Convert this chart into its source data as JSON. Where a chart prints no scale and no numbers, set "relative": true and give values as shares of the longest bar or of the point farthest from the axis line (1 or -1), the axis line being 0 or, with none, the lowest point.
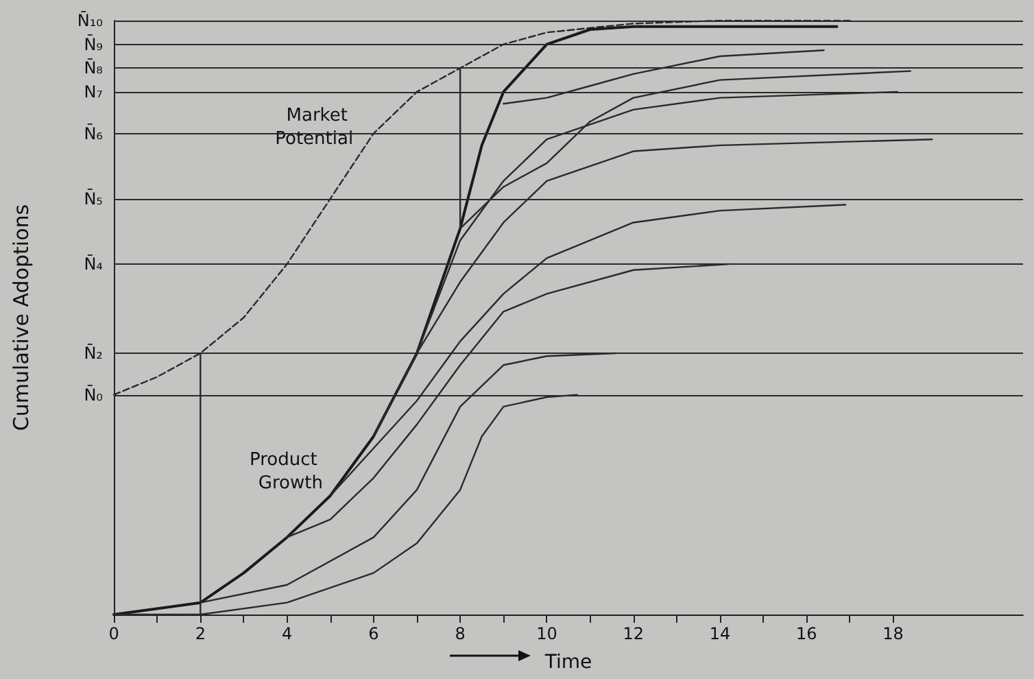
{
  "chart_data": {
    "type": "line",
    "relative": true,
    "xlabel": "Time",
    "ylabel": "Cumulative Adoptions",
    "marker": "none",
    "line_style": "solid",
    "xlim": [
      0,
      21
    ],
    "xticks": [
      0,
      {
        "value": 1,
        "label": null
      },
      2,
      {
        "value": 3,
        "label": null
      },
      4,
      {
        "value": 5,
        "label": null
      },
      6,
      {
        "value": 7,
        "label": null
      },
      8,
      {
        "value": 9,
        "label": null
      },
      10,
      {
        "value": 11,
        "label": null
      },
      12,
      {
        "value": 13,
        "label": null
      },
      14,
      {
        "value": 15,
        "label": null
      },
      16,
      {
        "value": 17,
        "label": null
      },
      18
    ],
    "series": [
      {
        "color": "#2a2a2a",
        "line_style": "dashed",
        "x": [
          0,
          1,
          2,
          3,
          4,
          5,
          6,
          7,
          8,
          9,
          10,
          12,
          14,
          17
        ],
        "values": [
          0.37,
          0.4,
          0.44,
          0.5,
          0.59,
          0.7,
          0.81,
          0.88,
          0.92,
          0.96,
          0.98,
          0.995,
          1,
          1
        ]
      },
      {
        "color": "#1a1a1a",
        "x": [
          0,
          2,
          3,
          4,
          5,
          6,
          7,
          8,
          8.5,
          9,
          10,
          11,
          12,
          14,
          16.7
        ],
        "values": [
          0,
          0.02,
          0.07,
          0.13,
          0.2,
          0.3,
          0.44,
          0.65,
          0.79,
          0.88,
          0.96,
          0.985,
          0.99,
          0.99,
          0.99
        ]
      },
      {
        "color": "#2a2a2a",
        "x": [
          0,
          2,
          4,
          6,
          7,
          8,
          8.5,
          9,
          10,
          10.7
        ],
        "values": [
          0,
          0,
          0.02,
          0.07,
          0.12,
          0.21,
          0.3,
          0.35,
          0.366,
          0.37
        ]
      },
      {
        "color": "#2a2a2a",
        "x": [
          2,
          4,
          6,
          7,
          8,
          9,
          10,
          11.6
        ],
        "values": [
          0.02,
          0.05,
          0.13,
          0.21,
          0.35,
          0.42,
          0.435,
          0.44
        ]
      },
      {
        "color": "#2a2a2a",
        "x": [
          4,
          5,
          6,
          7,
          8,
          9,
          10,
          12,
          14.2
        ],
        "values": [
          0.13,
          0.16,
          0.23,
          0.32,
          0.42,
          0.51,
          0.54,
          0.58,
          0.59
        ]
      },
      {
        "color": "#2a2a2a",
        "x": [
          5,
          6,
          7,
          8,
          9,
          10,
          12,
          14,
          16.9
        ],
        "values": [
          0.2,
          0.28,
          0.36,
          0.46,
          0.54,
          0.6,
          0.66,
          0.68,
          0.69
        ]
      },
      {
        "color": "#2a2a2a",
        "x": [
          6,
          7,
          8,
          9,
          10,
          12,
          14,
          18.9
        ],
        "values": [
          0.3,
          0.44,
          0.56,
          0.66,
          0.73,
          0.78,
          0.79,
          0.8
        ]
      },
      {
        "color": "#2a2a2a",
        "x": [
          7,
          8,
          9,
          10,
          12,
          14,
          18.1
        ],
        "values": [
          0.44,
          0.63,
          0.73,
          0.8,
          0.85,
          0.87,
          0.88
        ]
      },
      {
        "color": "#2a2a2a",
        "x": [
          8,
          9,
          10,
          11,
          12,
          14,
          18.4
        ],
        "values": [
          0.65,
          0.72,
          0.76,
          0.83,
          0.87,
          0.9,
          0.915
        ]
      },
      {
        "color": "#2a2a2a",
        "x": [
          9,
          10,
          11,
          12,
          14,
          16.4
        ],
        "values": [
          0.86,
          0.87,
          0.89,
          0.91,
          0.94,
          0.95
        ]
      },
      {
        "color": "#2a2a2a",
        "x": [
          2,
          2
        ],
        "values": [
          0,
          0.44
        ]
      },
      {
        "color": "#2a2a2a",
        "x": [
          8,
          8
        ],
        "values": [
          0.65,
          0.92
        ]
      }
    ],
    "ref_lines": [
      {
        "axis": "y",
        "value": 0.37,
        "label": "N̄₀"
      },
      {
        "axis": "y",
        "value": 0.44,
        "label": "N̄₂"
      },
      {
        "axis": "y",
        "value": 0.59,
        "label": "N̄₄"
      },
      {
        "axis": "y",
        "value": 0.7,
        "label": "N̄₅"
      },
      {
        "axis": "y",
        "value": 0.81,
        "label": "N̄₆"
      },
      {
        "axis": "y",
        "value": 0.88,
        "label": "N₇"
      },
      {
        "axis": "y",
        "value": 0.92,
        "label": "N̄₈"
      },
      {
        "axis": "y",
        "value": 0.96,
        "label": "N̄₉"
      },
      {
        "axis": "y",
        "value": 1,
        "label": "N̄₁₀"
      }
    ],
    "annotations": [
      {
        "text": "Market Potential",
        "x": 6.1,
        "y": 0.82
      },
      {
        "text": "Product Growth",
        "x": 5.4,
        "y": 0.24
      }
    ]
  }
}
